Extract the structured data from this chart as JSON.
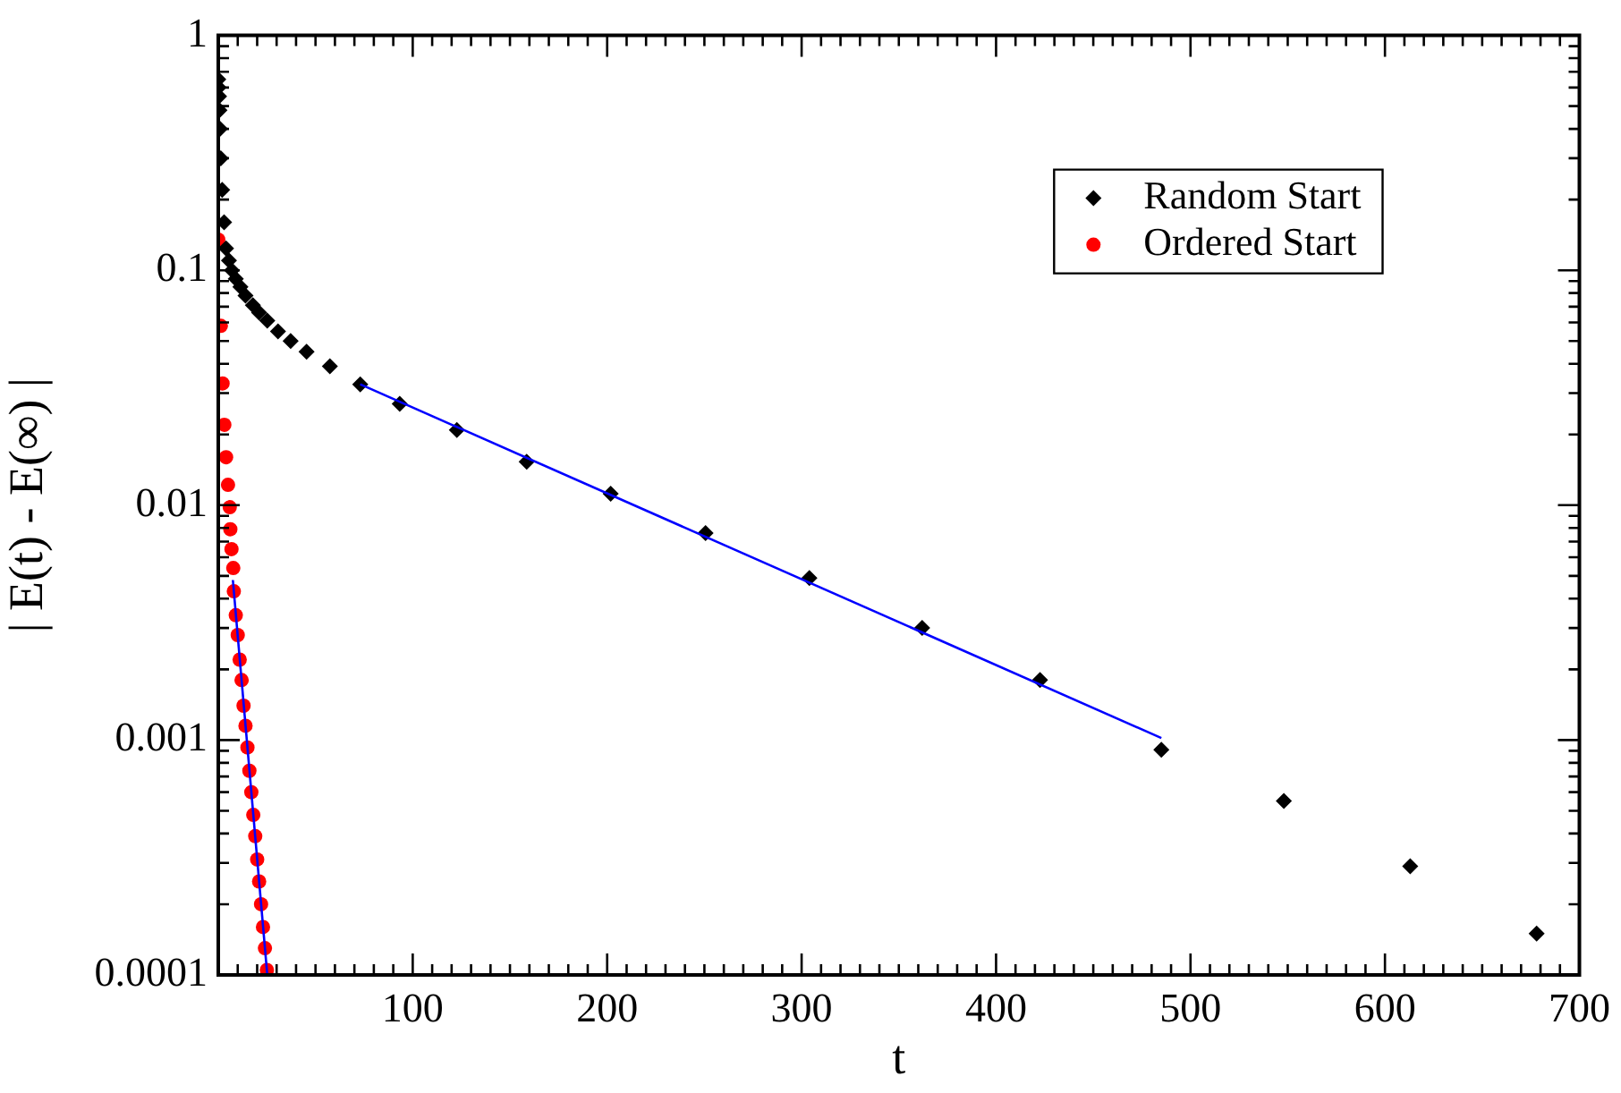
{
  "chart_data": {
    "type": "scatter",
    "xlabel": "t",
    "ylabel": "| E(t) - E(∞) |",
    "log": "y",
    "grid": false,
    "legend": "top right",
    "xlim": [
      0,
      700
    ],
    "xticks": [
      {
        "value": 10,
        "label": null
      },
      {
        "value": 20,
        "label": null
      },
      {
        "value": 30,
        "label": null
      },
      {
        "value": 40,
        "label": null
      },
      {
        "value": 50,
        "label": null
      },
      {
        "value": 60,
        "label": null
      },
      {
        "value": 70,
        "label": null
      },
      {
        "value": 80,
        "label": null
      },
      {
        "value": 90,
        "label": null
      },
      100,
      {
        "value": 110,
        "label": null
      },
      {
        "value": 120,
        "label": null
      },
      {
        "value": 130,
        "label": null
      },
      {
        "value": 140,
        "label": null
      },
      {
        "value": 150,
        "label": null
      },
      {
        "value": 160,
        "label": null
      },
      {
        "value": 170,
        "label": null
      },
      {
        "value": 180,
        "label": null
      },
      {
        "value": 190,
        "label": null
      },
      200,
      {
        "value": 210,
        "label": null
      },
      {
        "value": 220,
        "label": null
      },
      {
        "value": 230,
        "label": null
      },
      {
        "value": 240,
        "label": null
      },
      {
        "value": 250,
        "label": null
      },
      {
        "value": 260,
        "label": null
      },
      {
        "value": 270,
        "label": null
      },
      {
        "value": 280,
        "label": null
      },
      {
        "value": 290,
        "label": null
      },
      300,
      {
        "value": 310,
        "label": null
      },
      {
        "value": 320,
        "label": null
      },
      {
        "value": 330,
        "label": null
      },
      {
        "value": 340,
        "label": null
      },
      {
        "value": 350,
        "label": null
      },
      {
        "value": 360,
        "label": null
      },
      {
        "value": 370,
        "label": null
      },
      {
        "value": 380,
        "label": null
      },
      {
        "value": 390,
        "label": null
      },
      400,
      {
        "value": 410,
        "label": null
      },
      {
        "value": 420,
        "label": null
      },
      {
        "value": 430,
        "label": null
      },
      {
        "value": 440,
        "label": null
      },
      {
        "value": 450,
        "label": null
      },
      {
        "value": 460,
        "label": null
      },
      {
        "value": 470,
        "label": null
      },
      {
        "value": 480,
        "label": null
      },
      {
        "value": 490,
        "label": null
      },
      500,
      {
        "value": 510,
        "label": null
      },
      {
        "value": 520,
        "label": null
      },
      {
        "value": 530,
        "label": null
      },
      {
        "value": 540,
        "label": null
      },
      {
        "value": 550,
        "label": null
      },
      {
        "value": 560,
        "label": null
      },
      {
        "value": 570,
        "label": null
      },
      {
        "value": 580,
        "label": null
      },
      {
        "value": 590,
        "label": null
      },
      600,
      {
        "value": 610,
        "label": null
      },
      {
        "value": 620,
        "label": null
      },
      {
        "value": 630,
        "label": null
      },
      {
        "value": 640,
        "label": null
      },
      {
        "value": 650,
        "label": null
      },
      {
        "value": 660,
        "label": null
      },
      {
        "value": 670,
        "label": null
      },
      {
        "value": 680,
        "label": null
      },
      {
        "value": 690,
        "label": null
      },
      700
    ],
    "ylim": [
      0.0001,
      1
    ],
    "yticks": [
      0.0001,
      {
        "value": 0.0002,
        "label": null
      },
      {
        "value": 0.0003,
        "label": null
      },
      {
        "value": 0.0004,
        "label": null
      },
      {
        "value": 0.0005,
        "label": null
      },
      {
        "value": 0.0006,
        "label": null
      },
      {
        "value": 0.0007,
        "label": null
      },
      {
        "value": 0.0008,
        "label": null
      },
      {
        "value": 0.0009,
        "label": null
      },
      0.001,
      {
        "value": 0.002,
        "label": null
      },
      {
        "value": 0.003,
        "label": null
      },
      {
        "value": 0.004,
        "label": null
      },
      {
        "value": 0.005,
        "label": null
      },
      {
        "value": 0.006,
        "label": null
      },
      {
        "value": 0.007,
        "label": null
      },
      {
        "value": 0.008,
        "label": null
      },
      {
        "value": 0.009,
        "label": null
      },
      0.01,
      {
        "value": 0.02,
        "label": null
      },
      {
        "value": 0.03,
        "label": null
      },
      {
        "value": 0.04,
        "label": null
      },
      {
        "value": 0.05,
        "label": null
      },
      {
        "value": 0.06,
        "label": null
      },
      {
        "value": 0.07,
        "label": null
      },
      {
        "value": 0.08,
        "label": null
      },
      {
        "value": 0.09,
        "label": null
      },
      0.1,
      {
        "value": 0.2,
        "label": null
      },
      {
        "value": 0.3,
        "label": null
      },
      {
        "value": 0.4,
        "label": null
      },
      {
        "value": 0.5,
        "label": null
      },
      {
        "value": 0.6,
        "label": null
      },
      {
        "value": 0.7,
        "label": null
      },
      {
        "value": 0.8,
        "label": null
      },
      {
        "value": 0.9,
        "label": null
      },
      1
    ],
    "series": [
      {
        "name": "Random Start",
        "marker": "diamond",
        "color": "#000000",
        "x": [
          0,
          0.2,
          0.4,
          0.6,
          0.9,
          1.3,
          2,
          3,
          4,
          5.5,
          7,
          9,
          11.4,
          14,
          17.8,
          21,
          25.2,
          30.7,
          37.2,
          45.4,
          57.4,
          73,
          93.3,
          122.7,
          158.6,
          201.8,
          250.6,
          304,
          362,
          422.6,
          485,
          548,
          613,
          678
        ],
        "values": [
          0.65,
          0.6,
          0.55,
          0.48,
          0.4,
          0.3,
          0.22,
          0.16,
          0.124,
          0.11,
          0.1,
          0.092,
          0.085,
          0.078,
          0.071,
          0.066,
          0.061,
          0.055,
          0.05,
          0.045,
          0.039,
          0.0327,
          0.027,
          0.0209,
          0.0153,
          0.0112,
          0.0076,
          0.0049,
          0.003,
          0.0018,
          0.00091,
          0.00055,
          0.00029,
          0.00015
        ]
      },
      {
        "name": "Ordered Start",
        "marker": "circle",
        "color": "#ff0000",
        "x": [
          0,
          1.3,
          2.2,
          3.1,
          4,
          5,
          5.9,
          6.2,
          6.8,
          7.7,
          8,
          9,
          10,
          11,
          12,
          13,
          14,
          15,
          16,
          17,
          18,
          19,
          20,
          21,
          22,
          23,
          24,
          25
        ],
        "values": [
          0.135,
          0.058,
          0.033,
          0.022,
          0.016,
          0.0122,
          0.0098,
          0.0079,
          0.0065,
          0.0054,
          0.0043,
          0.0034,
          0.0028,
          0.0022,
          0.0018,
          0.0014,
          0.00115,
          0.00093,
          0.00074,
          0.0006,
          0.00048,
          0.00039,
          0.00031,
          0.00025,
          0.0002,
          0.00016,
          0.00013,
          0.000105
        ]
      },
      {
        "type": "line",
        "marker": "none",
        "line_style": "solid",
        "color": "#0000ff",
        "x": [
          73,
          485
        ],
        "values": [
          0.0327,
          0.00102
        ]
      },
      {
        "type": "line",
        "marker": "none",
        "line_style": "solid",
        "color": "#0000ff",
        "x": [
          7.5,
          25.2
        ],
        "values": [
          0.0048,
          0.0001
        ]
      }
    ]
  }
}
